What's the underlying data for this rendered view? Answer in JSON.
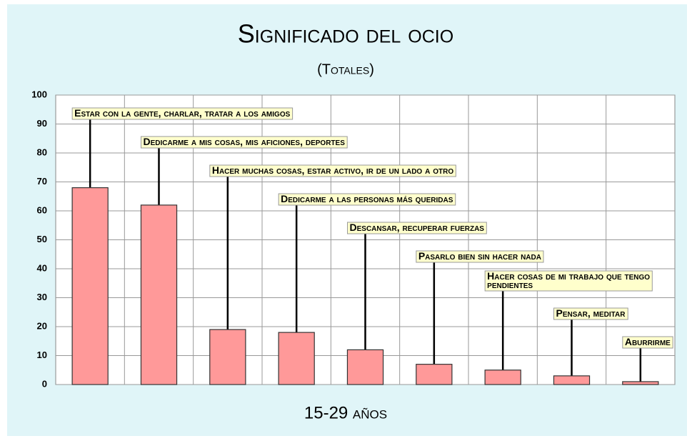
{
  "chart_data": {
    "type": "bar",
    "title": "Significado del ocio",
    "subtitle": "(Totales)",
    "x_label": "15-29 años",
    "categories": [
      "Estar con la gente, charlar, tratar a los amigos",
      "Dedicarme a mis cosas, mis aficiones, deportes",
      "Hacer muchas cosas, estar activo, ir de un lado a otro",
      "Dedicarme a las personas más queridas",
      "Descansar, recuperar fuerzas",
      "Pasarlo bien sin hacer nada",
      "Hacer cosas de mi trabajo que tengo pendientes",
      "Pensar, meditar",
      "Aburrirme"
    ],
    "values": [
      68,
      62,
      19,
      18,
      12,
      7,
      5,
      3,
      1
    ],
    "color": "#ff9999",
    "ylim": [
      0,
      100
    ],
    "yticks": [
      0,
      10,
      20,
      30,
      40,
      50,
      60,
      70,
      80,
      90,
      100
    ],
    "grid": true
  }
}
